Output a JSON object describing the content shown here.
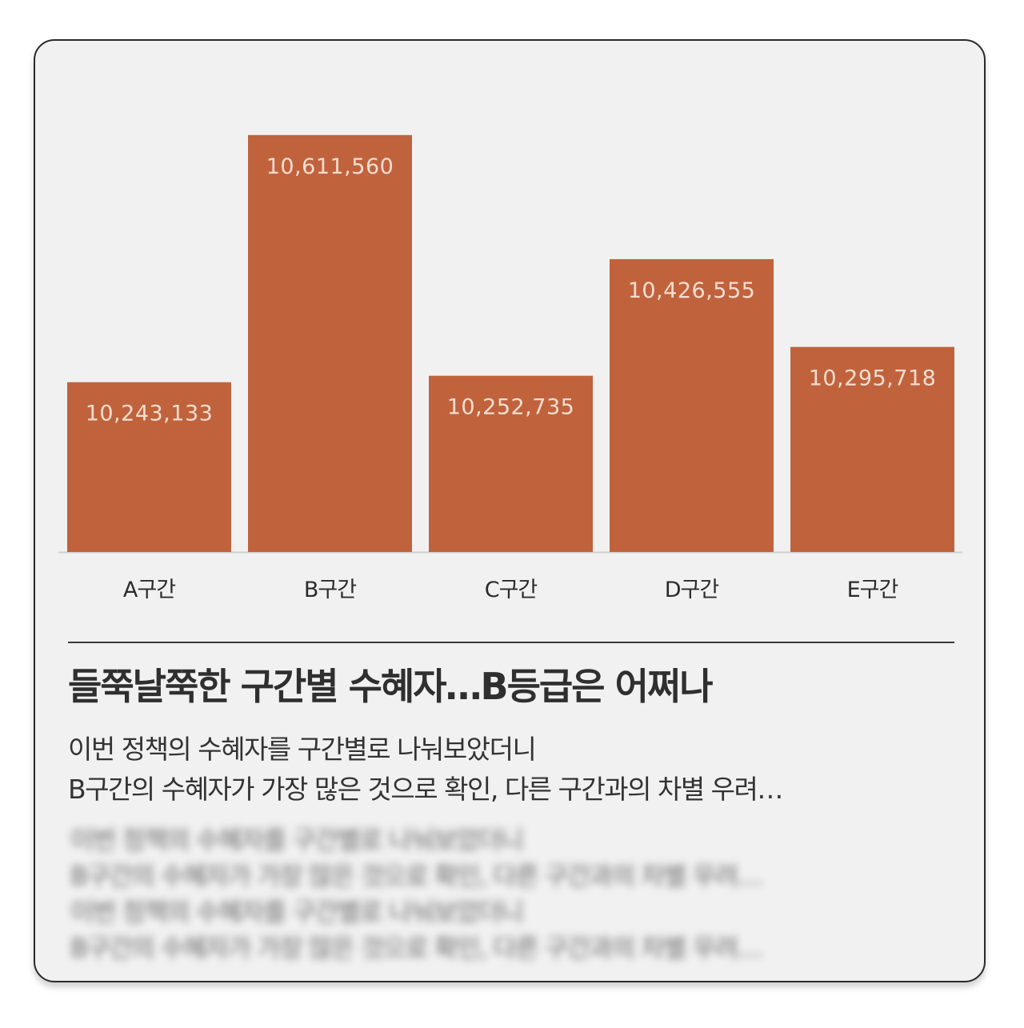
{
  "colors": {
    "bar": "#c0633d",
    "bar_label": "#f6ddd0",
    "category_label": "#2b2b2b",
    "axis": "#d0d0d0"
  },
  "chart_data": {
    "type": "bar",
    "categories": [
      "A구간",
      "B구간",
      "C구간",
      "D구간",
      "E구간"
    ],
    "values": [
      10243133,
      10611560,
      10252735,
      10426555,
      10295718
    ],
    "value_labels": [
      "10,243,133",
      "10,611,560",
      "10,252,735",
      "10,426,555",
      "10,295,718"
    ],
    "ylim": [
      9990000,
      10665000
    ],
    "grid": false,
    "legend": "none"
  },
  "headline": "들쭉날쭉한 구간별 수혜자…B등급은 어쩌나",
  "description": [
    "이번 정책의 수혜자를 구간별로 나눠보았더니",
    "B구간의 수혜자가 가장 많은 것으로 확인, 다른 구간과의 차별 우려…"
  ],
  "blurred_text": [
    "이번 정책의 수혜자를 구간별로 나눠보았더니",
    "B구간의 수혜자가 가장 많은 것으로 확인, 다른 구간과의 차별 우려…",
    "이번 정책의 수혜자를 구간별로 나눠보았더니",
    "B구간의 수혜자가 가장 많은 것으로 확인, 다른 구간과의 차별 우려…"
  ]
}
